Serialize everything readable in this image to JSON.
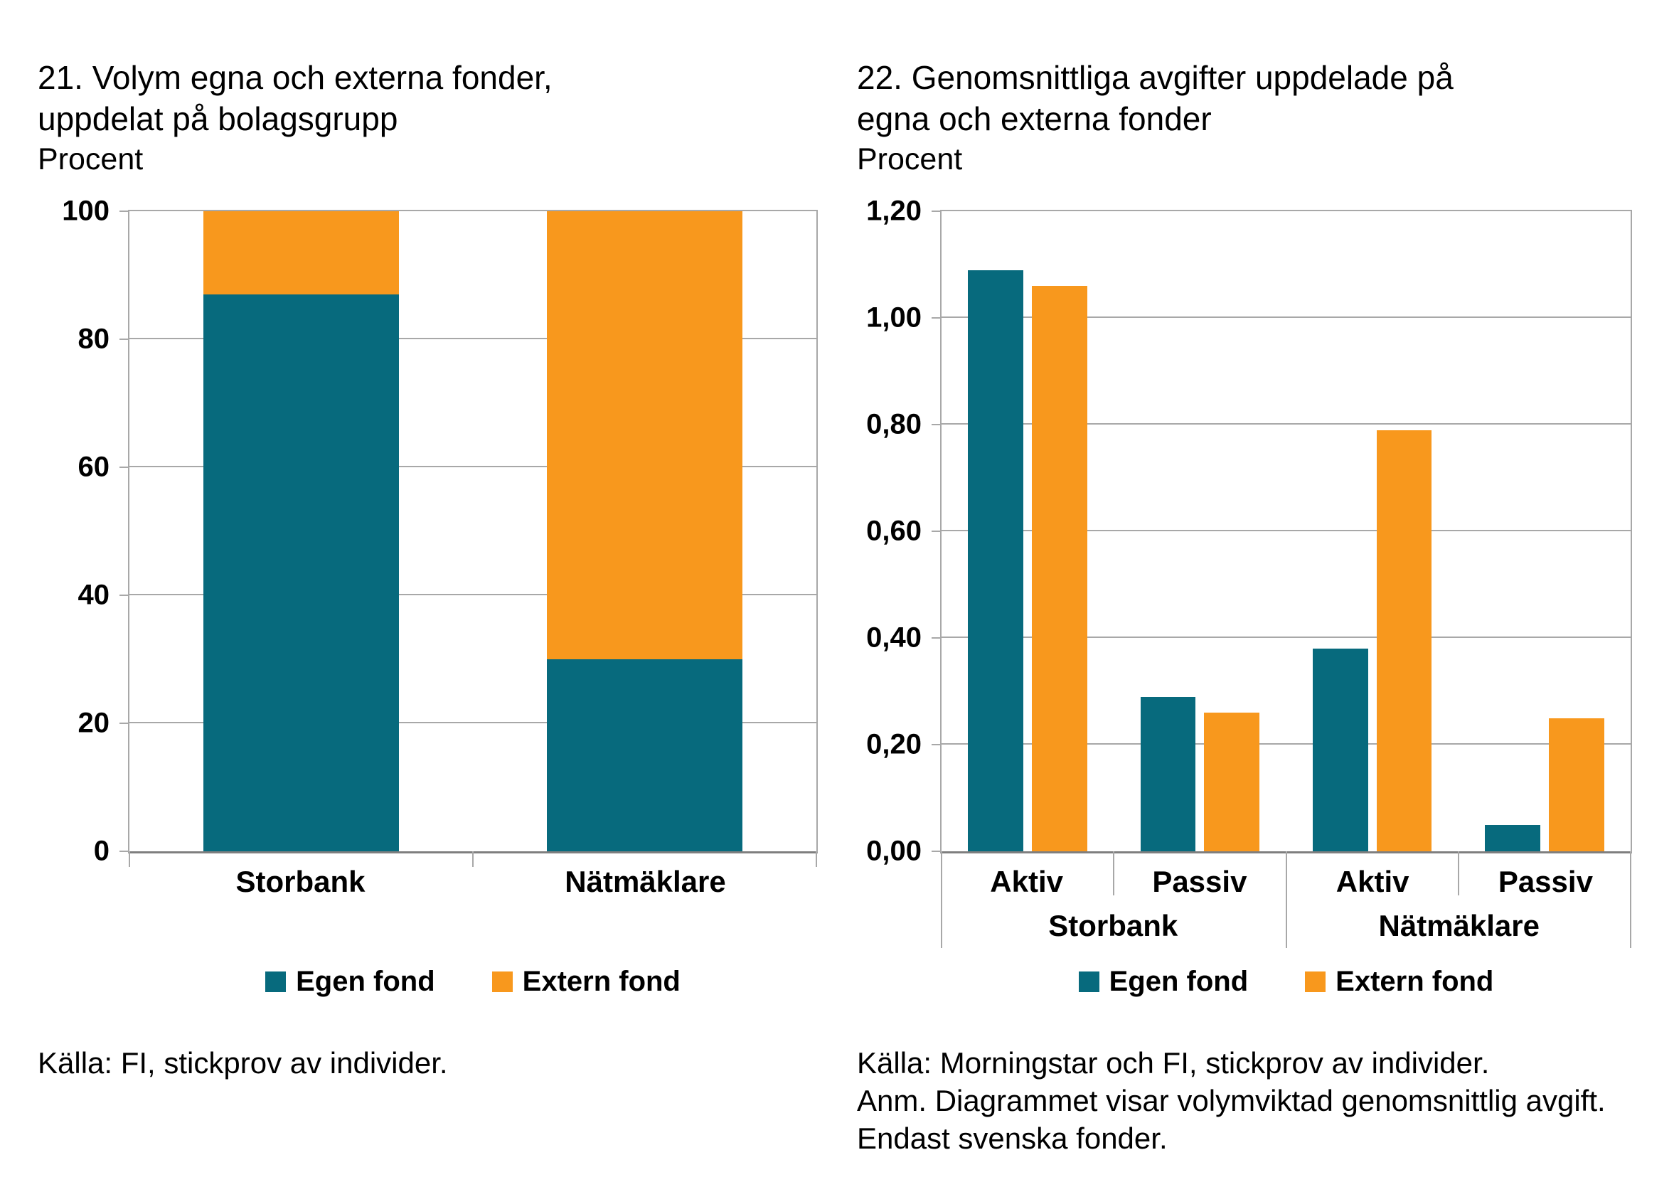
{
  "chart_data": [
    {
      "type": "bar",
      "subtype": "stacked",
      "title": "21. Volym egna och externa fonder, uppdelat på bolagsgrupp",
      "title_lines": [
        "21. Volym egna och externa fonder,",
        "uppdelat på bolagsgrupp"
      ],
      "unit": "Procent",
      "categories": [
        "Storbank",
        "Nätmäklare"
      ],
      "series": [
        {
          "name": "Egen fond",
          "color": "#076A7D",
          "values": [
            87,
            30
          ]
        },
        {
          "name": "Extern fond",
          "color": "#F8981D",
          "values": [
            13,
            70
          ]
        }
      ],
      "ylim": [
        0,
        100
      ],
      "ytick_labels": [
        "0",
        "20",
        "40",
        "60",
        "80",
        "100"
      ],
      "grid": "horizontal",
      "legend_position": "bottom",
      "source_lines": [
        "Källa: FI, stickprov av individer."
      ]
    },
    {
      "type": "bar",
      "subtype": "grouped",
      "title": "22. Genomsnittliga avgifter uppdelade på egna och externa fonder",
      "title_lines": [
        "22. Genomsnittliga avgifter uppdelade på",
        "egna och externa fonder"
      ],
      "unit": "Procent",
      "group_labels": [
        "Storbank",
        "Nätmäklare"
      ],
      "categories": [
        "Aktiv",
        "Passiv",
        "Aktiv",
        "Passiv"
      ],
      "series": [
        {
          "name": "Egen fond",
          "color": "#076A7D",
          "values": [
            1.09,
            0.29,
            0.38,
            0.05
          ]
        },
        {
          "name": "Extern fond",
          "color": "#F8981D",
          "values": [
            1.06,
            0.26,
            0.79,
            0.25
          ]
        }
      ],
      "ylim": [
        0,
        1.2
      ],
      "ytick_labels": [
        "0,00",
        "0,20",
        "0,40",
        "0,60",
        "0,80",
        "1,00",
        "1,20"
      ],
      "grid": "horizontal",
      "legend_position": "bottom",
      "source_lines": [
        "Källa: Morningstar och FI, stickprov av individer.",
        "Anm. Diagrammet visar volymviktad genomsnittlig avgift. Endast svenska fonder."
      ]
    }
  ],
  "axis_colors": {
    "gridline": "#a8a8a8",
    "axis_line": "#7f7f7f"
  }
}
